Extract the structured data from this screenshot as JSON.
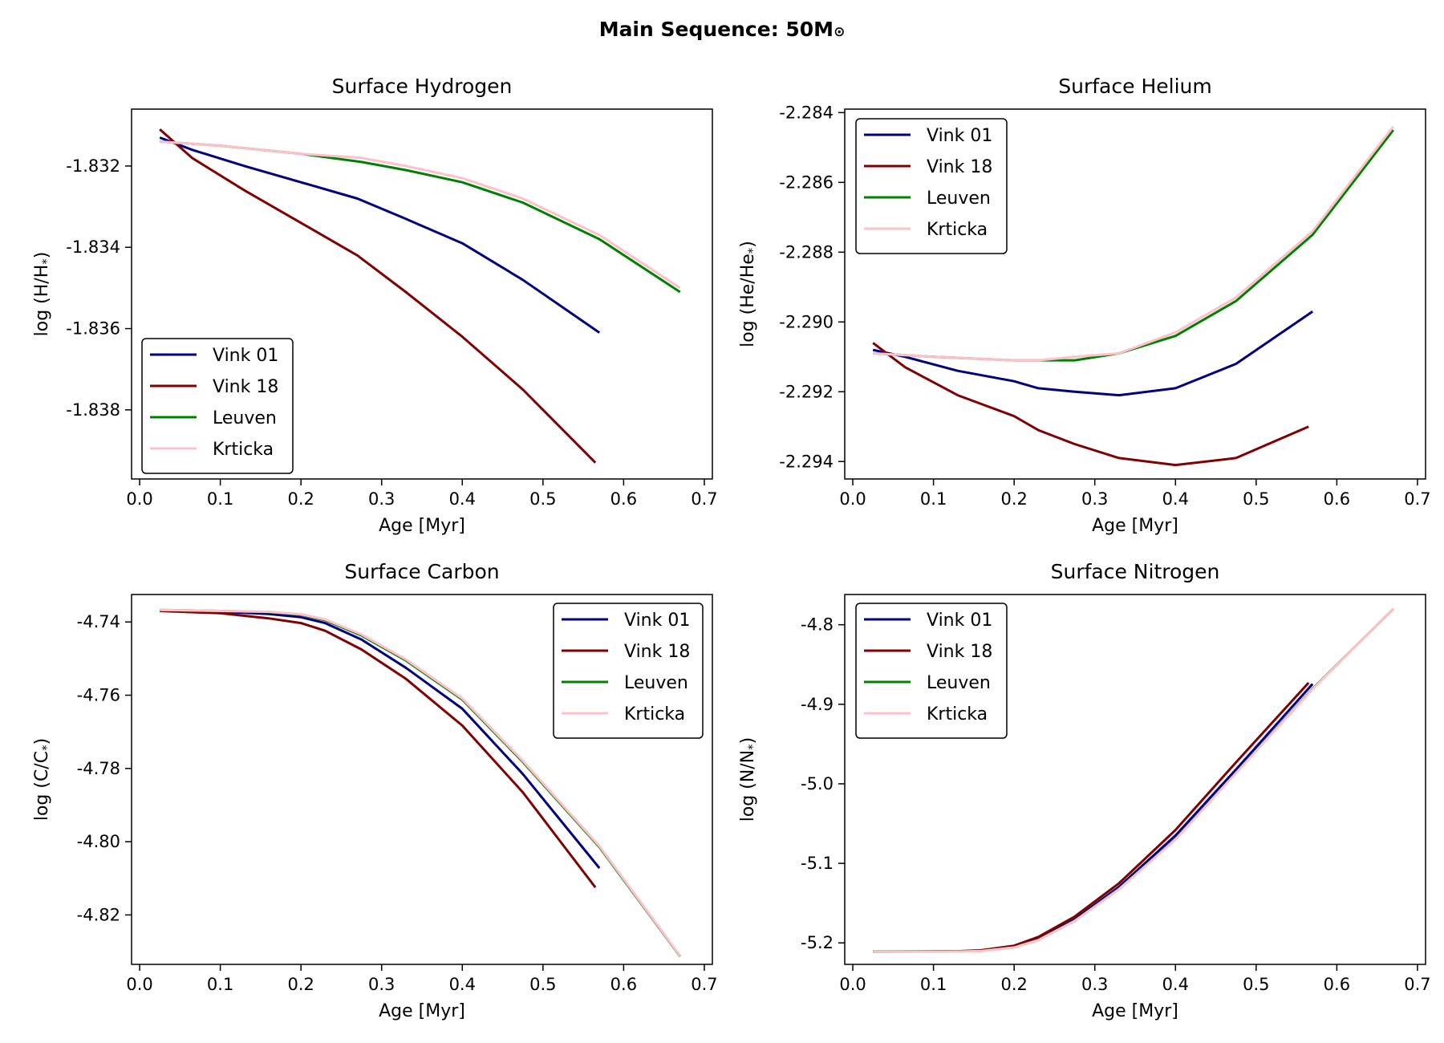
{
  "suptitle": {
    "main": "Main Sequence: 50M",
    "sub": "⊙"
  },
  "chart_data": [
    {
      "type": "line",
      "title": "Surface Hydrogen",
      "xlabel": "Age [Myr]",
      "ylabel": "log (H/H",
      "ylabel_sub": "*",
      "ylabel_end": ")",
      "xlim": [
        -0.01,
        0.71
      ],
      "ylim": [
        -1.8397,
        -1.8306
      ],
      "xticks": [
        0.0,
        0.1,
        0.2,
        0.3,
        0.4,
        0.5,
        0.6,
        0.7
      ],
      "xtick_labels": [
        "0.0",
        "0.1",
        "0.2",
        "0.3",
        "0.4",
        "0.5",
        "0.6",
        "0.7"
      ],
      "yticks": [
        -1.838,
        -1.836,
        -1.834,
        -1.832
      ],
      "ytick_labels": [
        "-1.838",
        "-1.836",
        "-1.834",
        "-1.832"
      ],
      "legend": "lower-left",
      "series": [
        {
          "name": "Vink 01",
          "color": "#00007f",
          "x": [
            0.025,
            0.065,
            0.13,
            0.2,
            0.27,
            0.33,
            0.4,
            0.475,
            0.57
          ],
          "y": [
            -1.8313,
            -1.8316,
            -1.832,
            -1.8324,
            -1.8328,
            -1.8333,
            -1.8339,
            -1.8348,
            -1.8361
          ]
        },
        {
          "name": "Vink 18",
          "color": "#7f0000",
          "x": [
            0.025,
            0.065,
            0.13,
            0.2,
            0.27,
            0.33,
            0.4,
            0.475,
            0.565
          ],
          "y": [
            -1.8311,
            -1.8318,
            -1.8326,
            -1.8334,
            -1.8342,
            -1.8351,
            -1.8362,
            -1.8375,
            -1.8393
          ]
        },
        {
          "name": "Leuven",
          "color": "#008000",
          "x": [
            0.025,
            0.1,
            0.2,
            0.275,
            0.33,
            0.4,
            0.475,
            0.57,
            0.67
          ],
          "y": [
            -1.8314,
            -1.8315,
            -1.8317,
            -1.8319,
            -1.8321,
            -1.8324,
            -1.8329,
            -1.8338,
            -1.8351
          ]
        },
        {
          "name": "Krticka",
          "color": "#ffc0cb",
          "x": [
            0.025,
            0.1,
            0.2,
            0.275,
            0.33,
            0.4,
            0.475,
            0.57,
            0.67
          ],
          "y": [
            -1.8314,
            -1.8315,
            -1.8317,
            -1.8318,
            -1.832,
            -1.8323,
            -1.8328,
            -1.8337,
            -1.835
          ]
        }
      ]
    },
    {
      "type": "line",
      "title": "Surface Helium",
      "xlabel": "Age [Myr]",
      "ylabel": "log (He/He",
      "ylabel_sub": "*",
      "ylabel_end": ")",
      "xlim": [
        -0.01,
        0.71
      ],
      "ylim": [
        -2.2945,
        -2.2839
      ],
      "xticks": [
        0.0,
        0.1,
        0.2,
        0.3,
        0.4,
        0.5,
        0.6,
        0.7
      ],
      "xtick_labels": [
        "0.0",
        "0.1",
        "0.2",
        "0.3",
        "0.4",
        "0.5",
        "0.6",
        "0.7"
      ],
      "yticks": [
        -2.294,
        -2.292,
        -2.29,
        -2.288,
        -2.286,
        -2.284
      ],
      "ytick_labels": [
        "-2.294",
        "-2.292",
        "-2.290",
        "-2.288",
        "-2.286",
        "-2.284"
      ],
      "legend": "upper-left",
      "series": [
        {
          "name": "Vink 01",
          "color": "#00007f",
          "x": [
            0.025,
            0.065,
            0.13,
            0.2,
            0.23,
            0.275,
            0.33,
            0.4,
            0.475,
            0.57
          ],
          "y": [
            -2.2908,
            -2.291,
            -2.2914,
            -2.2917,
            -2.2919,
            -2.292,
            -2.2921,
            -2.2919,
            -2.2912,
            -2.2897
          ]
        },
        {
          "name": "Vink 18",
          "color": "#7f0000",
          "x": [
            0.025,
            0.065,
            0.13,
            0.2,
            0.23,
            0.275,
            0.33,
            0.4,
            0.475,
            0.565
          ],
          "y": [
            -2.2906,
            -2.2913,
            -2.2921,
            -2.2927,
            -2.2931,
            -2.2935,
            -2.2939,
            -2.2941,
            -2.2939,
            -2.293
          ]
        },
        {
          "name": "Leuven",
          "color": "#008000",
          "x": [
            0.025,
            0.1,
            0.2,
            0.23,
            0.275,
            0.33,
            0.4,
            0.475,
            0.57,
            0.67
          ],
          "y": [
            -2.2909,
            -2.291,
            -2.2911,
            -2.2911,
            -2.2911,
            -2.2909,
            -2.2904,
            -2.2894,
            -2.2875,
            -2.2845
          ]
        },
        {
          "name": "Krticka",
          "color": "#ffc0cb",
          "x": [
            0.025,
            0.1,
            0.2,
            0.23,
            0.275,
            0.33,
            0.4,
            0.475,
            0.57,
            0.67
          ],
          "y": [
            -2.2909,
            -2.291,
            -2.2911,
            -2.2911,
            -2.291,
            -2.2909,
            -2.2903,
            -2.2893,
            -2.2874,
            -2.2844
          ]
        }
      ]
    },
    {
      "type": "line",
      "title": "Surface Carbon",
      "xlabel": "Age [Myr]",
      "ylabel": "log (C/C",
      "ylabel_sub": "*",
      "ylabel_end": ")",
      "xlim": [
        -0.01,
        0.71
      ],
      "ylim": [
        -4.8335,
        -4.7325
      ],
      "xticks": [
        0.0,
        0.1,
        0.2,
        0.3,
        0.4,
        0.5,
        0.6,
        0.7
      ],
      "xtick_labels": [
        "0.0",
        "0.1",
        "0.2",
        "0.3",
        "0.4",
        "0.5",
        "0.6",
        "0.7"
      ],
      "yticks": [
        -4.82,
        -4.8,
        -4.78,
        -4.76,
        -4.74
      ],
      "ytick_labels": [
        "-4.82",
        "-4.80",
        "-4.78",
        "-4.76",
        "-4.74"
      ],
      "legend": "upper-right",
      "series": [
        {
          "name": "Vink 01",
          "color": "#00007f",
          "x": [
            0.025,
            0.1,
            0.16,
            0.2,
            0.23,
            0.275,
            0.33,
            0.4,
            0.475,
            0.57
          ],
          "y": [
            -4.7369,
            -4.7372,
            -4.7378,
            -4.7387,
            -4.7403,
            -4.7448,
            -4.7525,
            -4.7637,
            -4.7815,
            -4.8072
          ]
        },
        {
          "name": "Vink 18",
          "color": "#7f0000",
          "x": [
            0.025,
            0.1,
            0.16,
            0.2,
            0.23,
            0.275,
            0.33,
            0.4,
            0.475,
            0.565
          ],
          "y": [
            -4.737,
            -4.7376,
            -4.739,
            -4.7403,
            -4.7424,
            -4.7475,
            -4.7555,
            -4.7683,
            -4.7865,
            -4.8125
          ]
        },
        {
          "name": "Leuven",
          "color": "#008000",
          "x": [
            0.025,
            0.1,
            0.16,
            0.2,
            0.23,
            0.275,
            0.33,
            0.4,
            0.475,
            0.57,
            0.67
          ],
          "y": [
            -4.7367,
            -4.737,
            -4.7373,
            -4.738,
            -4.7395,
            -4.7437,
            -4.7505,
            -4.7612,
            -4.7782,
            -4.8015,
            -4.8313
          ]
        },
        {
          "name": "Krticka",
          "color": "#ffc0cb",
          "x": [
            0.025,
            0.1,
            0.16,
            0.2,
            0.23,
            0.275,
            0.33,
            0.4,
            0.475,
            0.57,
            0.67
          ],
          "y": [
            -4.7367,
            -4.737,
            -4.7372,
            -4.7379,
            -4.7393,
            -4.7434,
            -4.7502,
            -4.7609,
            -4.7779,
            -4.8012,
            -4.8312
          ]
        }
      ]
    },
    {
      "type": "line",
      "title": "Surface Nitrogen",
      "xlabel": "Age [Myr]",
      "ylabel": "log (N/N",
      "ylabel_sub": "*",
      "ylabel_end": ")",
      "xlim": [
        -0.01,
        0.71
      ],
      "ylim": [
        -5.227,
        -4.762
      ],
      "xticks": [
        0.0,
        0.1,
        0.2,
        0.3,
        0.4,
        0.5,
        0.6,
        0.7
      ],
      "xtick_labels": [
        "0.0",
        "0.1",
        "0.2",
        "0.3",
        "0.4",
        "0.5",
        "0.6",
        "0.7"
      ],
      "yticks": [
        -5.2,
        -5.1,
        -5.0,
        -4.9,
        -4.8
      ],
      "ytick_labels": [
        "-5.2",
        "-5.1",
        "-5.0",
        "-4.9",
        "-4.8"
      ],
      "legend": "upper-left",
      "series": [
        {
          "name": "Vink 01",
          "color": "#00007f",
          "x": [
            0.025,
            0.1,
            0.13,
            0.16,
            0.2,
            0.23,
            0.275,
            0.33,
            0.4,
            0.475,
            0.57
          ],
          "y": [
            -5.2109,
            -5.2108,
            -5.2106,
            -5.2095,
            -5.2048,
            -5.195,
            -5.1705,
            -5.1295,
            -5.065,
            -4.982,
            -4.8745
          ]
        },
        {
          "name": "Vink 18",
          "color": "#7f0000",
          "x": [
            0.025,
            0.1,
            0.13,
            0.16,
            0.2,
            0.23,
            0.275,
            0.33,
            0.4,
            0.475,
            0.565
          ],
          "y": [
            -5.211,
            -5.2108,
            -5.2105,
            -5.209,
            -5.2035,
            -5.1925,
            -5.167,
            -5.125,
            -5.058,
            -4.973,
            -4.873
          ]
        },
        {
          "name": "Leuven",
          "color": "#008000",
          "x": [
            0.025,
            0.1,
            0.13,
            0.16,
            0.2,
            0.23,
            0.275,
            0.33,
            0.4,
            0.475,
            0.57,
            0.67
          ],
          "y": [
            -5.211,
            -5.2109,
            -5.2107,
            -5.21,
            -5.2055,
            -5.1962,
            -5.172,
            -5.132,
            -5.0695,
            -4.986,
            -4.8805,
            -4.78
          ]
        },
        {
          "name": "Krticka",
          "color": "#ffc0cb",
          "x": [
            0.025,
            0.1,
            0.13,
            0.16,
            0.2,
            0.23,
            0.275,
            0.33,
            0.4,
            0.475,
            0.57,
            0.67
          ],
          "y": [
            -5.2112,
            -5.2111,
            -5.2109,
            -5.2102,
            -5.2058,
            -5.1965,
            -5.1725,
            -5.1325,
            -5.07,
            -4.9865,
            -4.881,
            -4.7798
          ]
        }
      ]
    }
  ]
}
